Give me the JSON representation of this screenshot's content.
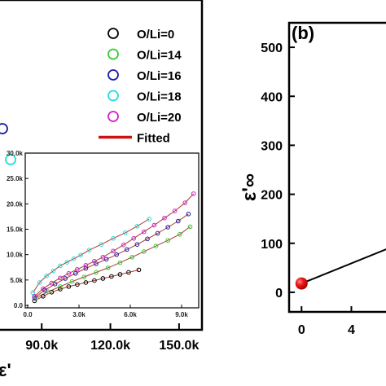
{
  "chart_data": [
    {
      "type": "scatter",
      "panel": "left",
      "xlabel": "ε'",
      "x_ticks": [
        "90.0k",
        "120.0k",
        "150.0k"
      ],
      "xlim": [
        70000,
        160000
      ],
      "legend": {
        "placement": "top-right",
        "entries": [
          {
            "label": "O/Li=0",
            "color": "#000000",
            "marker": "open-circle"
          },
          {
            "label": "O/Li=14",
            "color": "#33cc33",
            "marker": "open-circle"
          },
          {
            "label": "O/Li=16",
            "color": "#1a1aa8",
            "marker": "open-circle"
          },
          {
            "label": "O/Li=18",
            "color": "#22dddd",
            "marker": "open-circle"
          },
          {
            "label": "O/Li=20",
            "color": "#cc22cc",
            "marker": "open-circle"
          },
          {
            "label": "Fitted",
            "color": "#cc1111",
            "marker": "line"
          }
        ]
      },
      "visible_main_points": [
        {
          "series": "O/Li=16",
          "x": 70500,
          "color": "#1a1aa8"
        },
        {
          "series": "O/Li=18",
          "x": 74000,
          "color": "#22dddd"
        }
      ],
      "inset": {
        "x_ticks": [
          "0.0",
          "3.0k",
          "6.0k",
          "9.0k"
        ],
        "y_ticks": [
          "0.0",
          "5.0k",
          "10.0k",
          "15.0k",
          "20.0k",
          "25.0k",
          "30.0k"
        ],
        "xlim": [
          0,
          10000
        ],
        "ylim": [
          0,
          30000
        ],
        "series": [
          {
            "name": "O/Li=0",
            "color": "#000000",
            "x": [
              400,
              900,
              1400,
              1900,
              2400,
              2900,
              3400,
              3900,
              4400,
              4900,
              5400,
              5900,
              6500
            ],
            "y": [
              900,
              1800,
              2600,
              3200,
              3700,
              4100,
              4500,
              4900,
              5300,
              5700,
              6100,
              6500,
              7000
            ]
          },
          {
            "name": "O/Li=14",
            "color": "#33cc33",
            "x": [
              500,
              1200,
              1900,
              2600,
              3300,
              4000,
              4700,
              5400,
              6100,
              6800,
              7500,
              8200,
              8900,
              9500
            ],
            "y": [
              1500,
              2700,
              3700,
              4700,
              5600,
              6500,
              7400,
              8400,
              9500,
              10600,
              11700,
              12800,
              14000,
              15500
            ]
          },
          {
            "name": "O/Li=16",
            "color": "#1a1aa8",
            "x": [
              400,
              1000,
              1600,
              2200,
              2800,
              3400,
              4000,
              4600,
              5200,
              5800,
              6400,
              7000,
              7600,
              8200,
              8800,
              9400
            ],
            "y": [
              1500,
              3000,
              4200,
              5300,
              6300,
              7300,
              8200,
              9100,
              10000,
              11000,
              12000,
              13100,
              14200,
              15400,
              16600,
              18000
            ]
          },
          {
            "name": "O/Li=18",
            "color": "#22dddd",
            "x": [
              300,
              700,
              1100,
              1500,
              1900,
              2300,
              2700,
              3100,
              3600,
              4300,
              5000,
              5700,
              6400,
              7100
            ],
            "y": [
              2500,
              4500,
              5800,
              6800,
              7800,
              8500,
              9200,
              9900,
              10900,
              12000,
              13200,
              14300,
              15600,
              17000
            ]
          },
          {
            "name": "O/Li=20",
            "color": "#cc22cc",
            "x": [
              400,
              900,
              1400,
              1900,
              2400,
              2900,
              3400,
              3900,
              4400,
              5000,
              5600,
              6200,
              6800,
              7400,
              8000,
              8600,
              9200,
              9700
            ],
            "y": [
              1800,
              3300,
              4400,
              5400,
              6300,
              7100,
              7900,
              8700,
              9500,
              10700,
              11900,
              13200,
              14500,
              15800,
              17200,
              18600,
              20200,
              22000
            ]
          }
        ]
      }
    },
    {
      "type": "line",
      "panel": "right",
      "panel_label": "(b)",
      "ylabel": "ε'∞",
      "y_ticks": [
        "0",
        "100",
        "200",
        "300",
        "400",
        "500"
      ],
      "x_ticks": [
        "0",
        "4"
      ],
      "ylim": [
        -40,
        550
      ],
      "xlim": [
        -1,
        7.5
      ],
      "series": [
        {
          "x": [
            0,
            7.5
          ],
          "y": [
            18,
            95
          ],
          "color": "#000000",
          "marker_color": "#e81010"
        }
      ]
    }
  ]
}
